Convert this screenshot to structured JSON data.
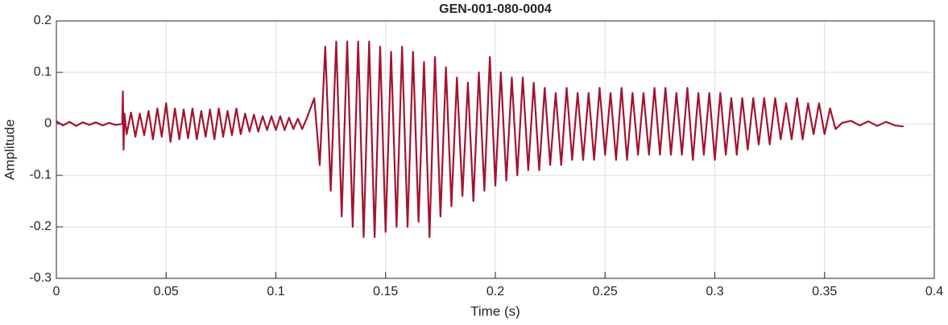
{
  "chart_data": {
    "type": "line",
    "title": "GEN-001-080-0004",
    "xlabel": "Time (s)",
    "ylabel": "Amplitude",
    "xlim": [
      0,
      0.4
    ],
    "xticks": [
      0,
      0.05,
      0.1,
      0.15,
      0.2,
      0.25,
      0.3,
      0.35,
      0.4
    ],
    "ylim": [
      -0.3,
      0.2
    ],
    "yticks": [
      -0.3,
      -0.2,
      -0.1,
      0,
      0.1,
      0.2
    ],
    "grid": true,
    "x": [
      0,
      0.003,
      0.006,
      0.009,
      0.012,
      0.015,
      0.018,
      0.021,
      0.024,
      0.027,
      0.03,
      0.0303,
      0.0306,
      0.031,
      0.032,
      0.034,
      0.036,
      0.038,
      0.04,
      0.042,
      0.044,
      0.046,
      0.048,
      0.05,
      0.052,
      0.054,
      0.056,
      0.058,
      0.06,
      0.062,
      0.064,
      0.066,
      0.068,
      0.07,
      0.072,
      0.074,
      0.076,
      0.078,
      0.08,
      0.082,
      0.084,
      0.086,
      0.088,
      0.09,
      0.092,
      0.094,
      0.096,
      0.098,
      0.1,
      0.102,
      0.104,
      0.106,
      0.108,
      0.11,
      0.112,
      0.114,
      0.1175,
      0.12,
      0.1225,
      0.125,
      0.1275,
      0.13,
      0.1325,
      0.135,
      0.1375,
      0.14,
      0.1425,
      0.145,
      0.1475,
      0.15,
      0.1525,
      0.155,
      0.1575,
      0.16,
      0.1625,
      0.165,
      0.1675,
      0.17,
      0.1725,
      0.175,
      0.1775,
      0.18,
      0.1825,
      0.185,
      0.1875,
      0.19,
      0.1925,
      0.195,
      0.1975,
      0.2,
      0.2025,
      0.205,
      0.2075,
      0.21,
      0.2125,
      0.215,
      0.2175,
      0.22,
      0.2225,
      0.225,
      0.2275,
      0.23,
      0.2325,
      0.235,
      0.2375,
      0.24,
      0.2425,
      0.245,
      0.2475,
      0.25,
      0.2525,
      0.255,
      0.2575,
      0.26,
      0.2625,
      0.265,
      0.2675,
      0.27,
      0.2725,
      0.275,
      0.2775,
      0.28,
      0.2825,
      0.285,
      0.2875,
      0.29,
      0.2925,
      0.295,
      0.2975,
      0.3,
      0.3025,
      0.305,
      0.3075,
      0.31,
      0.3125,
      0.315,
      0.3175,
      0.32,
      0.3225,
      0.325,
      0.3275,
      0.33,
      0.3325,
      0.335,
      0.3375,
      0.34,
      0.3425,
      0.345,
      0.3475,
      0.35,
      0.3525,
      0.355,
      0.358,
      0.362,
      0.366,
      0.37,
      0.374,
      0.378,
      0.382,
      0.386
    ],
    "series": [
      {
        "color": "#a2142f",
        "values": [
          0.005,
          -0.003,
          0.004,
          -0.004,
          0.003,
          -0.002,
          0.003,
          -0.003,
          0.002,
          -0.002,
          0.0,
          0.063,
          -0.05,
          0.02,
          -0.02,
          0.022,
          -0.025,
          0.02,
          -0.022,
          0.025,
          -0.03,
          0.03,
          -0.025,
          0.04,
          -0.035,
          0.03,
          -0.03,
          0.028,
          -0.028,
          0.03,
          -0.03,
          0.025,
          -0.025,
          0.028,
          -0.03,
          0.03,
          -0.025,
          0.025,
          -0.022,
          0.03,
          -0.02,
          0.02,
          -0.015,
          0.018,
          -0.015,
          0.015,
          -0.012,
          0.015,
          -0.012,
          0.015,
          -0.012,
          0.012,
          -0.01,
          0.01,
          -0.01,
          0.01,
          0.05,
          -0.08,
          0.15,
          -0.13,
          0.16,
          -0.18,
          0.16,
          -0.2,
          0.16,
          -0.22,
          0.16,
          -0.22,
          0.15,
          -0.21,
          0.14,
          -0.2,
          0.15,
          -0.2,
          0.14,
          -0.19,
          0.12,
          -0.22,
          0.13,
          -0.18,
          0.11,
          -0.16,
          0.09,
          -0.14,
          0.08,
          -0.15,
          0.1,
          -0.13,
          0.13,
          -0.12,
          0.1,
          -0.11,
          0.09,
          -0.1,
          0.09,
          -0.09,
          0.08,
          -0.09,
          0.07,
          -0.08,
          0.06,
          -0.08,
          0.07,
          -0.07,
          0.06,
          -0.07,
          0.06,
          -0.07,
          0.07,
          -0.06,
          0.06,
          -0.07,
          0.07,
          -0.07,
          0.06,
          -0.06,
          0.06,
          -0.06,
          0.07,
          -0.06,
          0.07,
          -0.06,
          0.06,
          -0.06,
          0.07,
          -0.07,
          0.06,
          -0.06,
          0.06,
          -0.07,
          0.06,
          -0.06,
          0.05,
          -0.06,
          0.05,
          -0.05,
          0.05,
          -0.04,
          0.05,
          -0.04,
          0.05,
          -0.03,
          0.04,
          -0.03,
          0.05,
          -0.03,
          0.04,
          -0.02,
          0.04,
          -0.02,
          0.03,
          -0.01,
          0.002,
          0.006,
          -0.003,
          0.005,
          -0.004,
          0.004,
          -0.003,
          -0.005
        ]
      }
    ]
  }
}
